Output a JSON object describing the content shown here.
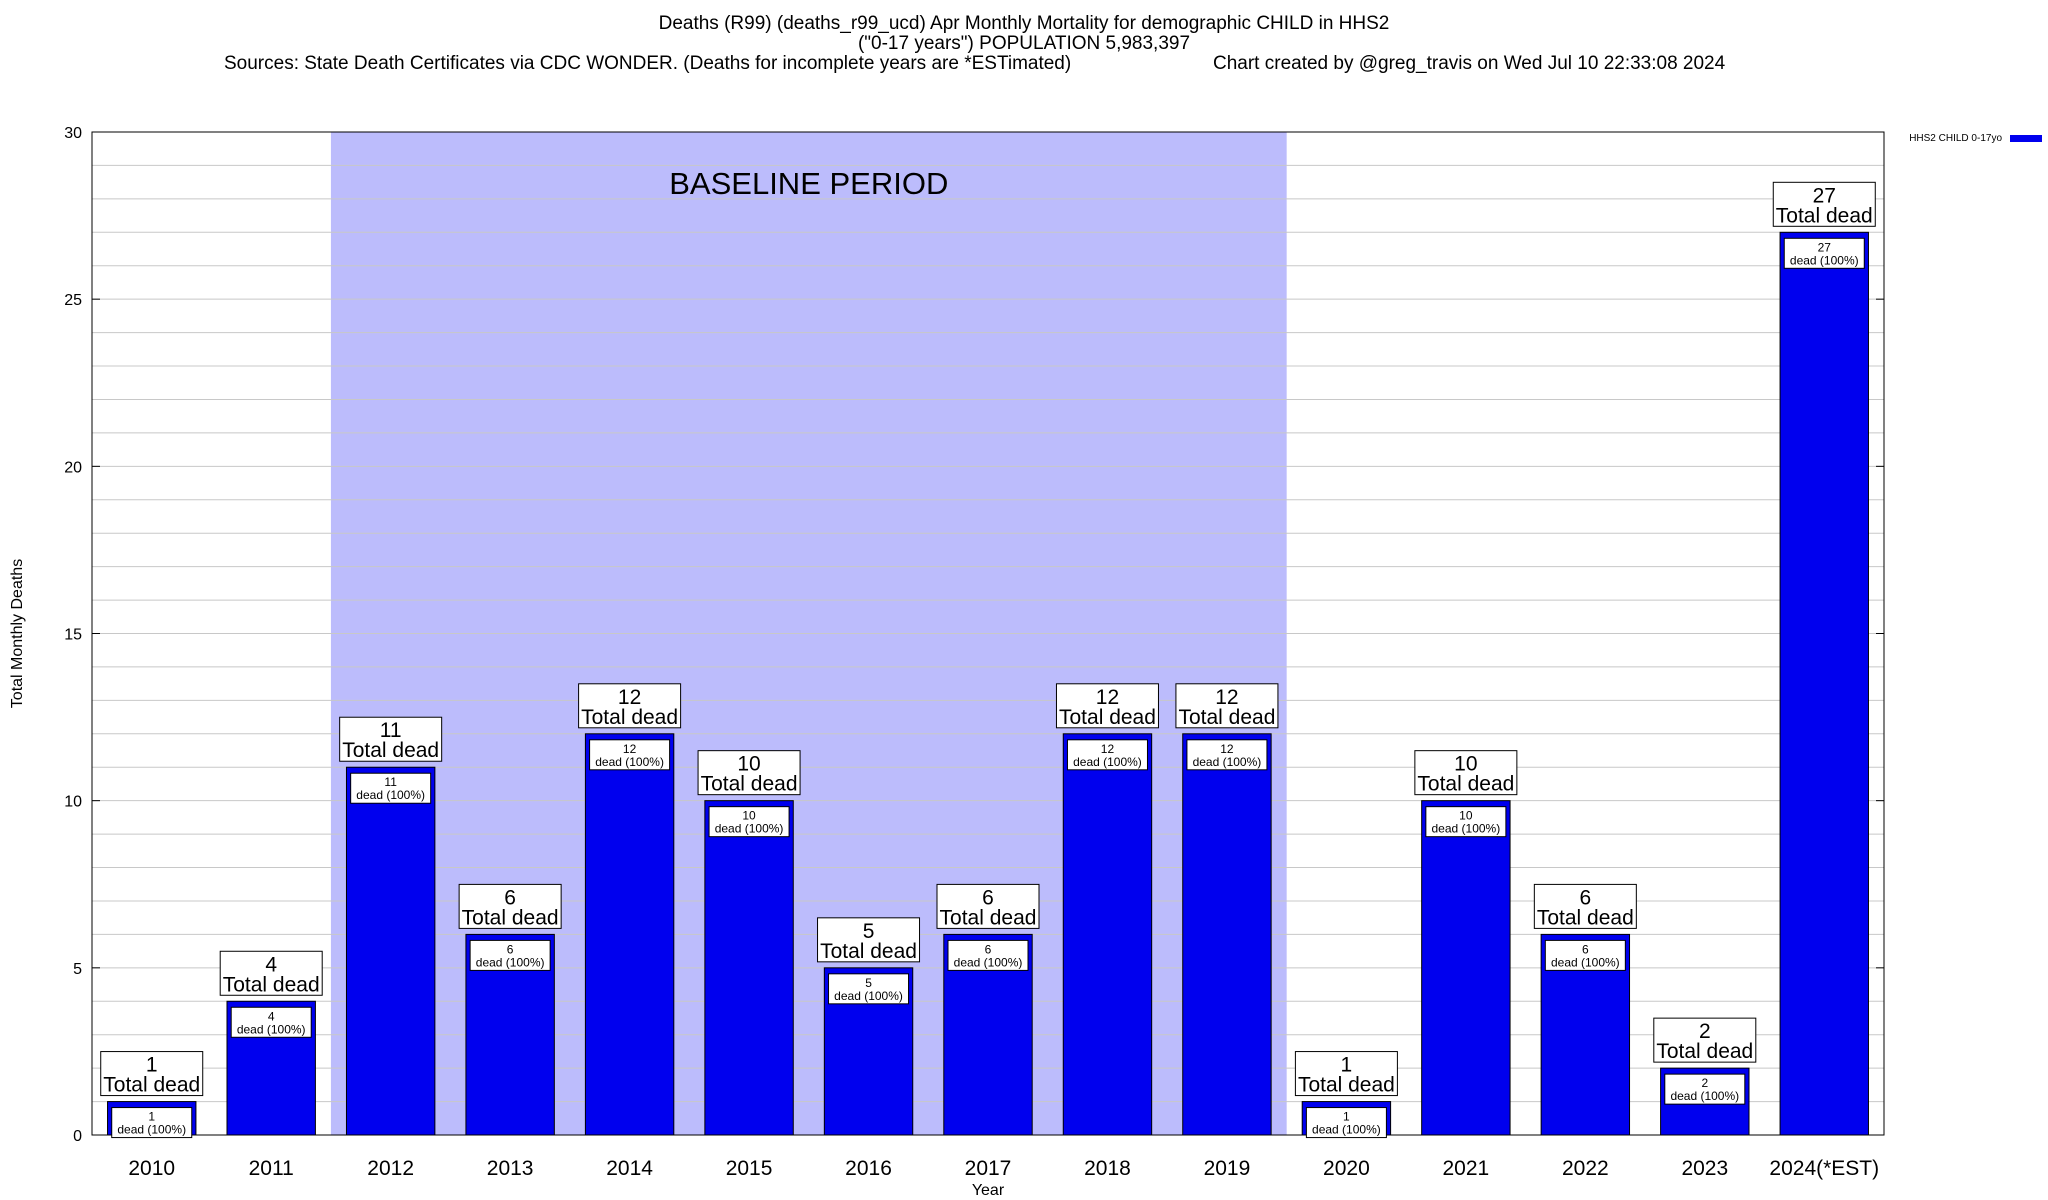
{
  "title": {
    "line1": "Deaths (R99) (deaths_r99_ucd) Apr Monthly Mortality for demographic CHILD in HHS2",
    "line2": "(\"0-17 years\") POPULATION 5,983,397",
    "sources": "Sources: State Death Certificates via CDC WONDER. (Deaths for incomplete years are *ESTimated)",
    "credit": "Chart created by @greg_travis on Wed Jul 10 22:33:08 2024"
  },
  "colors": {
    "bar": "#0000ee",
    "baseline_band": "#bcbcfc",
    "grid": "#c8c8c8"
  },
  "chart_data": {
    "type": "bar",
    "title": "Deaths (R99) (deaths_r99_ucd) Apr Monthly Mortality for demographic CHILD in HHS2",
    "xlabel": "Year",
    "ylabel": "Total Monthly Deaths",
    "ylim": [
      0,
      30
    ],
    "yticks": [
      0,
      5,
      10,
      15,
      20,
      25,
      30
    ],
    "grid": true,
    "legend_placement": "top-right",
    "categories": [
      "2010",
      "2011",
      "2012",
      "2013",
      "2014",
      "2015",
      "2016",
      "2017",
      "2018",
      "2019",
      "2020",
      "2021",
      "2022",
      "2023",
      "2024(*EST)"
    ],
    "series": [
      {
        "name": "HHS2 CHILD 0-17yo",
        "values": [
          1,
          4,
          11,
          6,
          12,
          10,
          5,
          6,
          12,
          12,
          1,
          10,
          6,
          2,
          27
        ]
      }
    ],
    "top_label_suffix": "Total dead",
    "inner_labels": [
      "dead (100%)",
      "dead (100%)",
      "dead (100%)",
      "dead (100%)",
      "dead (100%)",
      "dead (100%)",
      "dead (100%)",
      "dead (100%)",
      "dead (100%)",
      "dead (100%)",
      "dead (100%)",
      "dead (100%)",
      "dead (100%)",
      "dead (100%)",
      "dead (100%)"
    ],
    "annotations": [
      {
        "text": "BASELINE PERIOD",
        "from_category": "2012",
        "to_category": "2019"
      }
    ]
  }
}
